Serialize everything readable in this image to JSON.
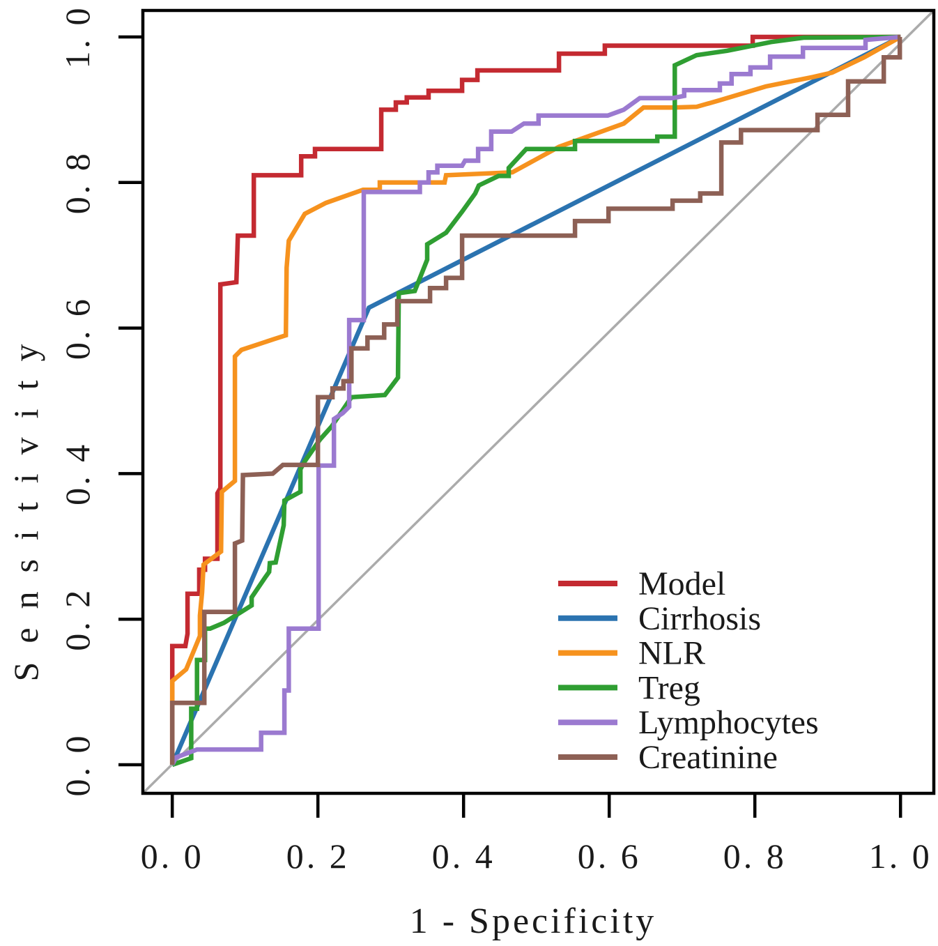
{
  "figure": {
    "type": "roc-plot",
    "background": "#ffffff",
    "border_color": "#000000",
    "text_color": "#1a1a1a",
    "diagonal_color": "#ababab"
  },
  "chart_data": {
    "type": "line",
    "subtype": "roc-curves",
    "title": "",
    "xlabel": "1 - Specificity",
    "ylabel": "Sensitivity",
    "xlim": [
      -0.04,
      1.04
    ],
    "ylim": [
      -0.04,
      1.04
    ],
    "grid": false,
    "legend_position": "lower right",
    "x_ticks": [
      0.0,
      0.2,
      0.4,
      0.6,
      0.8,
      1.0
    ],
    "x_tick_labels": [
      "0. 0",
      "0. 2",
      "0. 4",
      "0. 6",
      "0. 8",
      "1. 0"
    ],
    "y_ticks": [
      0.0,
      0.2,
      0.4,
      0.6,
      0.8,
      1.0
    ],
    "y_tick_labels": [
      "0. 0",
      "0. 2",
      "0. 4",
      "0. 6",
      "0. 8",
      "1. 0"
    ],
    "reference_line": {
      "name": "chance-diagonal",
      "color": "#ababab",
      "corner_to_corner": true
    },
    "series": [
      {
        "name": "Model",
        "color": "#c42a31",
        "points": [
          [
            0,
            0
          ],
          [
            0,
            0.163
          ],
          [
            0.018,
            0.163
          ],
          [
            0.021,
            0.18
          ],
          [
            0.021,
            0.235
          ],
          [
            0.037,
            0.235
          ],
          [
            0.037,
            0.268
          ],
          [
            0.045,
            0.268
          ],
          [
            0.045,
            0.283
          ],
          [
            0.062,
            0.283
          ],
          [
            0.062,
            0.373
          ],
          [
            0.066,
            0.38
          ],
          [
            0.066,
            0.66
          ],
          [
            0.088,
            0.663
          ],
          [
            0.09,
            0.727
          ],
          [
            0.112,
            0.727
          ],
          [
            0.112,
            0.81
          ],
          [
            0.177,
            0.81
          ],
          [
            0.177,
            0.836
          ],
          [
            0.196,
            0.836
          ],
          [
            0.196,
            0.846
          ],
          [
            0.287,
            0.846
          ],
          [
            0.287,
            0.9
          ],
          [
            0.307,
            0.9
          ],
          [
            0.307,
            0.91
          ],
          [
            0.322,
            0.91
          ],
          [
            0.322,
            0.917
          ],
          [
            0.352,
            0.917
          ],
          [
            0.352,
            0.926
          ],
          [
            0.398,
            0.926
          ],
          [
            0.398,
            0.941
          ],
          [
            0.419,
            0.941
          ],
          [
            0.419,
            0.954
          ],
          [
            0.531,
            0.954
          ],
          [
            0.531,
            0.977
          ],
          [
            0.594,
            0.977
          ],
          [
            0.594,
            0.988
          ],
          [
            0.797,
            0.988
          ],
          [
            0.797,
            1
          ],
          [
            1,
            1
          ]
        ]
      },
      {
        "name": "Cirrhosis",
        "color": "#2b73b0",
        "points": [
          [
            0,
            0
          ],
          [
            0.27,
            0.628
          ],
          [
            1,
            1
          ]
        ]
      },
      {
        "name": "NLR",
        "color": "#f6921e",
        "points": [
          [
            0,
            0
          ],
          [
            0,
            0.115
          ],
          [
            0.019,
            0.131
          ],
          [
            0.038,
            0.177
          ],
          [
            0.038,
            0.205
          ],
          [
            0.041,
            0.237
          ],
          [
            0.043,
            0.275
          ],
          [
            0.067,
            0.293
          ],
          [
            0.068,
            0.375
          ],
          [
            0.086,
            0.39
          ],
          [
            0.086,
            0.561
          ],
          [
            0.095,
            0.57
          ],
          [
            0.14,
            0.585
          ],
          [
            0.156,
            0.59
          ],
          [
            0.157,
            0.683
          ],
          [
            0.16,
            0.72
          ],
          [
            0.182,
            0.757
          ],
          [
            0.211,
            0.772
          ],
          [
            0.262,
            0.79
          ],
          [
            0.285,
            0.79
          ],
          [
            0.285,
            0.8
          ],
          [
            0.374,
            0.8
          ],
          [
            0.376,
            0.81
          ],
          [
            0.467,
            0.814
          ],
          [
            0.531,
            0.849
          ],
          [
            0.62,
            0.881
          ],
          [
            0.647,
            0.903
          ],
          [
            0.688,
            0.903
          ],
          [
            0.72,
            0.904
          ],
          [
            0.752,
            0.913
          ],
          [
            0.815,
            0.932
          ],
          [
            0.88,
            0.945
          ],
          [
            0.906,
            0.951
          ],
          [
            0.95,
            0.972
          ],
          [
            1,
            1
          ]
        ]
      },
      {
        "name": "Treg",
        "color": "#2f9e32",
        "points": [
          [
            0,
            0
          ],
          [
            0.026,
            0.009
          ],
          [
            0.026,
            0.077
          ],
          [
            0.034,
            0.077
          ],
          [
            0.034,
            0.144
          ],
          [
            0.045,
            0.144
          ],
          [
            0.045,
            0.187
          ],
          [
            0.052,
            0.187
          ],
          [
            0.071,
            0.195
          ],
          [
            0.109,
            0.219
          ],
          [
            0.109,
            0.23
          ],
          [
            0.128,
            0.258
          ],
          [
            0.133,
            0.265
          ],
          [
            0.134,
            0.277
          ],
          [
            0.142,
            0.278
          ],
          [
            0.153,
            0.329
          ],
          [
            0.154,
            0.363
          ],
          [
            0.176,
            0.375
          ],
          [
            0.176,
            0.406
          ],
          [
            0.182,
            0.417
          ],
          [
            0.203,
            0.447
          ],
          [
            0.219,
            0.465
          ],
          [
            0.246,
            0.505
          ],
          [
            0.292,
            0.508
          ],
          [
            0.31,
            0.532
          ],
          [
            0.311,
            0.648
          ],
          [
            0.333,
            0.651
          ],
          [
            0.35,
            0.694
          ],
          [
            0.35,
            0.715
          ],
          [
            0.376,
            0.731
          ],
          [
            0.398,
            0.76
          ],
          [
            0.416,
            0.785
          ],
          [
            0.421,
            0.796
          ],
          [
            0.448,
            0.809
          ],
          [
            0.462,
            0.809
          ],
          [
            0.462,
            0.82
          ],
          [
            0.486,
            0.846
          ],
          [
            0.553,
            0.846
          ],
          [
            0.553,
            0.857
          ],
          [
            0.666,
            0.857
          ],
          [
            0.666,
            0.863
          ],
          [
            0.69,
            0.863
          ],
          [
            0.69,
            0.961
          ],
          [
            0.72,
            0.975
          ],
          [
            0.762,
            0.981
          ],
          [
            0.822,
            0.993
          ],
          [
            0.867,
            0.999
          ],
          [
            1,
            1
          ]
        ]
      },
      {
        "name": "Lymphocytes",
        "color": "#9b7ad0",
        "points": [
          [
            0,
            0
          ],
          [
            0.005,
            0.01
          ],
          [
            0.034,
            0.021
          ],
          [
            0.122,
            0.021
          ],
          [
            0.122,
            0.044
          ],
          [
            0.154,
            0.044
          ],
          [
            0.154,
            0.102
          ],
          [
            0.16,
            0.102
          ],
          [
            0.16,
            0.187
          ],
          [
            0.201,
            0.187
          ],
          [
            0.201,
            0.411
          ],
          [
            0.222,
            0.411
          ],
          [
            0.222,
            0.475
          ],
          [
            0.234,
            0.483
          ],
          [
            0.243,
            0.492
          ],
          [
            0.243,
            0.611
          ],
          [
            0.263,
            0.611
          ],
          [
            0.263,
            0.787
          ],
          [
            0.34,
            0.787
          ],
          [
            0.34,
            0.8
          ],
          [
            0.352,
            0.8
          ],
          [
            0.352,
            0.814
          ],
          [
            0.364,
            0.814
          ],
          [
            0.364,
            0.823
          ],
          [
            0.398,
            0.823
          ],
          [
            0.402,
            0.83
          ],
          [
            0.42,
            0.83
          ],
          [
            0.42,
            0.846
          ],
          [
            0.438,
            0.846
          ],
          [
            0.438,
            0.87
          ],
          [
            0.466,
            0.87
          ],
          [
            0.483,
            0.881
          ],
          [
            0.503,
            0.881
          ],
          [
            0.503,
            0.892
          ],
          [
            0.598,
            0.892
          ],
          [
            0.62,
            0.9
          ],
          [
            0.642,
            0.916
          ],
          [
            0.687,
            0.916
          ],
          [
            0.703,
            0.919
          ],
          [
            0.703,
            0.927
          ],
          [
            0.752,
            0.927
          ],
          [
            0.752,
            0.936
          ],
          [
            0.768,
            0.936
          ],
          [
            0.768,
            0.949
          ],
          [
            0.794,
            0.949
          ],
          [
            0.794,
            0.958
          ],
          [
            0.821,
            0.958
          ],
          [
            0.821,
            0.973
          ],
          [
            0.866,
            0.973
          ],
          [
            0.866,
            0.985
          ],
          [
            0.952,
            0.985
          ],
          [
            0.952,
            0.996
          ],
          [
            1,
            1
          ]
        ]
      },
      {
        "name": "Creatinine",
        "color": "#8d6055",
        "points": [
          [
            0,
            0
          ],
          [
            0,
            0.085
          ],
          [
            0.044,
            0.085
          ],
          [
            0.044,
            0.21
          ],
          [
            0.086,
            0.21
          ],
          [
            0.086,
            0.304
          ],
          [
            0.096,
            0.308
          ],
          [
            0.097,
            0.398
          ],
          [
            0.138,
            0.4
          ],
          [
            0.152,
            0.412
          ],
          [
            0.2,
            0.412
          ],
          [
            0.2,
            0.505
          ],
          [
            0.22,
            0.505
          ],
          [
            0.22,
            0.517
          ],
          [
            0.235,
            0.517
          ],
          [
            0.235,
            0.527
          ],
          [
            0.246,
            0.527
          ],
          [
            0.246,
            0.572
          ],
          [
            0.268,
            0.572
          ],
          [
            0.268,
            0.587
          ],
          [
            0.291,
            0.587
          ],
          [
            0.291,
            0.605
          ],
          [
            0.309,
            0.605
          ],
          [
            0.309,
            0.637
          ],
          [
            0.354,
            0.637
          ],
          [
            0.354,
            0.655
          ],
          [
            0.376,
            0.655
          ],
          [
            0.376,
            0.669
          ],
          [
            0.398,
            0.669
          ],
          [
            0.398,
            0.727
          ],
          [
            0.553,
            0.727
          ],
          [
            0.553,
            0.747
          ],
          [
            0.599,
            0.747
          ],
          [
            0.599,
            0.764
          ],
          [
            0.687,
            0.764
          ],
          [
            0.687,
            0.775
          ],
          [
            0.725,
            0.775
          ],
          [
            0.725,
            0.785
          ],
          [
            0.754,
            0.785
          ],
          [
            0.754,
            0.855
          ],
          [
            0.781,
            0.855
          ],
          [
            0.781,
            0.872
          ],
          [
            0.886,
            0.872
          ],
          [
            0.886,
            0.893
          ],
          [
            0.928,
            0.893
          ],
          [
            0.928,
            0.939
          ],
          [
            0.977,
            0.939
          ],
          [
            0.977,
            0.972
          ],
          [
            0.999,
            0.972
          ],
          [
            0.999,
            1
          ],
          [
            1,
            1
          ]
        ]
      }
    ]
  },
  "legend": {
    "items": [
      {
        "label": "Model",
        "color": "#c42a31"
      },
      {
        "label": "Cirrhosis",
        "color": "#2b73b0"
      },
      {
        "label": "NLR",
        "color": "#f6921e"
      },
      {
        "label": "Treg",
        "color": "#2f9e32"
      },
      {
        "label": "Lymphocytes",
        "color": "#9b7ad0"
      },
      {
        "label": "Creatinine",
        "color": "#8d6055"
      }
    ]
  }
}
